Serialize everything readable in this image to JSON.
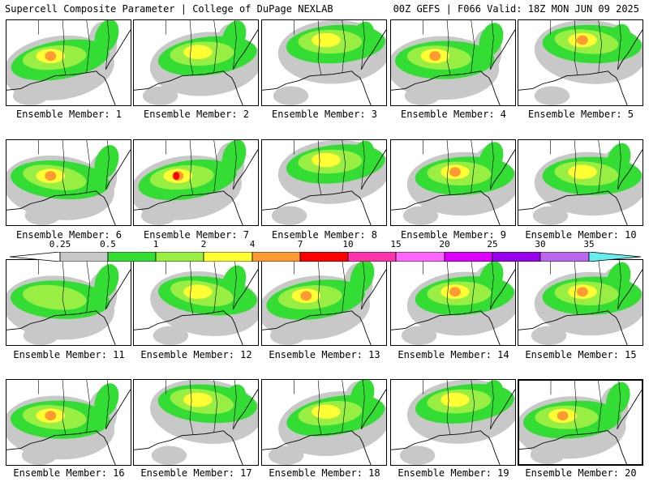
{
  "header": {
    "title": "Supercell Composite Parameter | College of DuPage NEXLAB",
    "run_info": "00Z GEFS | F066 Valid: 18Z MON JUN 09 2025"
  },
  "legend": {
    "labels": [
      "0.25",
      "0.5",
      "1",
      "2",
      "4",
      "7",
      "10",
      "15",
      "20",
      "25",
      "30",
      "35"
    ],
    "colors": [
      "#ffffff",
      "#c8c8c8",
      "#33dd33",
      "#99ee44",
      "#ffff33",
      "#ff9933",
      "#ff0000",
      "#ff33aa",
      "#ff66ff",
      "#dd00ff",
      "#9900ee",
      "#bb66ee",
      "#66eeee"
    ]
  },
  "members": [
    {
      "label": "Ensemble Member: 1",
      "max_level": 4,
      "focus": "west"
    },
    {
      "label": "Ensemble Member: 2",
      "max_level": 3,
      "focus": "center"
    },
    {
      "label": "Ensemble Member: 3",
      "max_level": 3,
      "focus": "north"
    },
    {
      "label": "Ensemble Member: 4",
      "max_level": 4,
      "focus": "west"
    },
    {
      "label": "Ensemble Member: 5",
      "max_level": 4,
      "focus": "north"
    },
    {
      "label": "Ensemble Member: 6",
      "max_level": 4,
      "focus": "west"
    },
    {
      "label": "Ensemble Member: 7",
      "max_level": 5,
      "focus": "west"
    },
    {
      "label": "Ensemble Member: 8",
      "max_level": 3,
      "focus": "north"
    },
    {
      "label": "Ensemble Member: 9",
      "max_level": 4,
      "focus": "center"
    },
    {
      "label": "Ensemble Member: 10",
      "max_level": 3,
      "focus": "center"
    },
    {
      "label": "Ensemble Member: 11",
      "max_level": 2,
      "focus": "west"
    },
    {
      "label": "Ensemble Member: 12",
      "max_level": 3,
      "focus": "center"
    },
    {
      "label": "Ensemble Member: 13",
      "max_level": 4,
      "focus": "west"
    },
    {
      "label": "Ensemble Member: 14",
      "max_level": 4,
      "focus": "center"
    },
    {
      "label": "Ensemble Member: 15",
      "max_level": 4,
      "focus": "center"
    },
    {
      "label": "Ensemble Member: 16",
      "max_level": 4,
      "focus": "west"
    },
    {
      "label": "Ensemble Member: 17",
      "max_level": 3,
      "focus": "north"
    },
    {
      "label": "Ensemble Member: 18",
      "max_level": 3,
      "focus": "center"
    },
    {
      "label": "Ensemble Member: 19",
      "max_level": 3,
      "focus": "north"
    },
    {
      "label": "Ensemble Member: 20",
      "max_level": 4,
      "focus": "west"
    }
  ]
}
